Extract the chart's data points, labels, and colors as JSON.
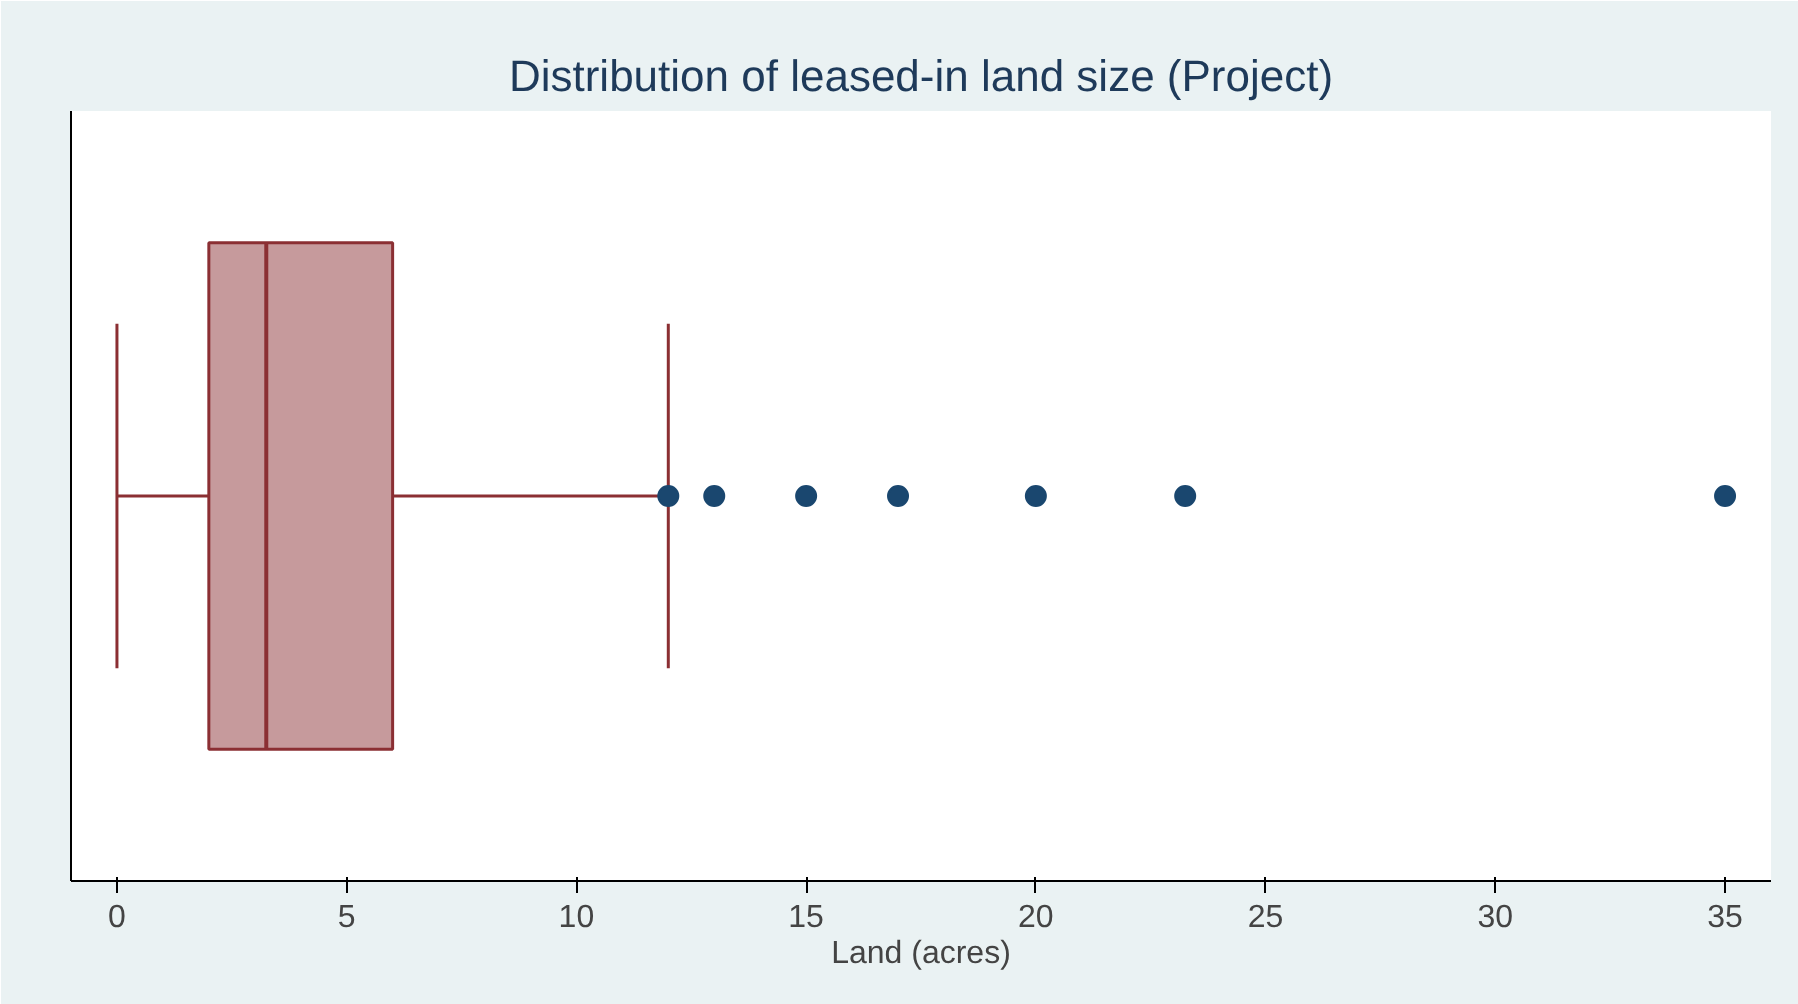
{
  "chart_data": {
    "type": "box",
    "orientation": "horizontal",
    "title": "Distribution of leased-in land size (Project)",
    "xlabel": "Land (acres)",
    "categories": [
      null
    ],
    "boxes": [
      {
        "low": 0,
        "q1": 2,
        "median": 3.25,
        "q3": 6,
        "high": 12,
        "outliers": [
          12,
          13,
          15,
          17,
          20,
          23.25,
          35
        ]
      }
    ],
    "color": "#c69a9c",
    "xlim": [
      -1,
      36
    ],
    "xticks": [
      0,
      5,
      10,
      15,
      20,
      25,
      30,
      35
    ],
    "tick_labels": "x",
    "grid": false
  }
}
